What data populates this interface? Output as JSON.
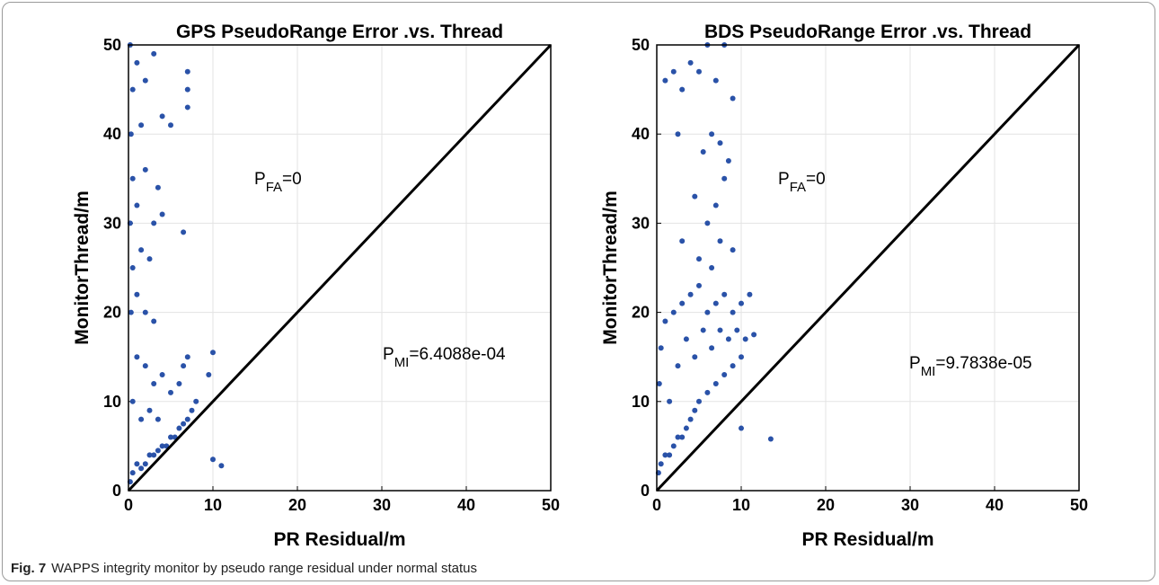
{
  "caption": {
    "label": "Fig. 7",
    "text": "WAPPS integrity monitor by pseudo range residual under normal status"
  },
  "chart_data": [
    {
      "type": "scatter",
      "title": "GPS PseudoRange Error .vs. Thread",
      "xlabel": "PR Residual/m",
      "ylabel": "MonitorThread/m",
      "xlim": [
        0,
        50
      ],
      "ylim": [
        0,
        50
      ],
      "xticks": [
        0,
        10,
        20,
        30,
        40,
        50
      ],
      "yticks": [
        0,
        10,
        20,
        30,
        40,
        50
      ],
      "grid": true,
      "annotations": [
        {
          "text": "P",
          "sub": "FA",
          "tail": "=0"
        },
        {
          "text": "P",
          "sub": "MI",
          "tail": "=6.4088e-04"
        }
      ],
      "series": [
        {
          "color": "#2a52a8",
          "x": [
            0.2,
            0.5,
            1,
            1.5,
            2,
            2.5,
            3,
            3.5,
            4,
            4.5,
            5,
            5.5,
            6,
            6.5,
            7,
            7.5,
            8,
            10,
            11,
            10,
            9.5,
            7,
            6.5,
            6,
            5,
            4,
            3,
            2,
            1,
            0.5,
            1.5,
            2.5,
            3.5,
            0.3,
            1,
            2,
            3,
            0.5,
            1.5,
            2.5,
            0.2,
            1,
            3,
            4,
            6.5,
            0.5,
            2,
            3.5,
            0.3,
            1.5,
            4,
            0.5,
            2,
            7,
            7,
            1,
            3,
            0.2,
            5,
            7
          ],
          "values": [
            1,
            2,
            3,
            2.5,
            3,
            4,
            4,
            4.5,
            5,
            5,
            6,
            6,
            7,
            7.5,
            8,
            9,
            10,
            3.5,
            2.8,
            15.5,
            13,
            15,
            14,
            12,
            11,
            13,
            12,
            14,
            15,
            10,
            8,
            9,
            8,
            20,
            22,
            20,
            19,
            25,
            27,
            26,
            30,
            32,
            30,
            31,
            29,
            35,
            36,
            34,
            40,
            41,
            42,
            45,
            46,
            47,
            45,
            48,
            49,
            50,
            41,
            43
          ]
        },
        {
          "type": "line",
          "color": "#000000",
          "x": [
            0,
            50
          ],
          "values": [
            0,
            50
          ]
        }
      ]
    },
    {
      "type": "scatter",
      "title": "BDS PseudoRange Error .vs. Thread",
      "xlabel": "PR Residual/m",
      "ylabel": "MonitorThread/m",
      "xlim": [
        0,
        50
      ],
      "ylim": [
        0,
        50
      ],
      "xticks": [
        0,
        10,
        20,
        30,
        40,
        50
      ],
      "yticks": [
        0,
        10,
        20,
        30,
        40,
        50
      ],
      "grid": true,
      "annotations": [
        {
          "text": "P",
          "sub": "FA",
          "tail": "=0"
        },
        {
          "text": "P",
          "sub": "MI",
          "tail": "=9.7838e-05"
        }
      ],
      "series": [
        {
          "color": "#2a52a8",
          "x": [
            0.2,
            0.5,
            1,
            1.5,
            2,
            2.5,
            3,
            3.5,
            4,
            4.5,
            5,
            6,
            7,
            8,
            9,
            10,
            10.5,
            11,
            10,
            9,
            8,
            7,
            6,
            5,
            4,
            3,
            2,
            1,
            0.5,
            0.3,
            1.5,
            2.5,
            3.5,
            4.5,
            5.5,
            6.5,
            7.5,
            8.5,
            9.5,
            11.5,
            13.5,
            10,
            2,
            3,
            4,
            5,
            6,
            7,
            8,
            9,
            5.5,
            6.5,
            7.5,
            8.5,
            4.5,
            6,
            7,
            8,
            3,
            5,
            6.5,
            7.5,
            9,
            1,
            2.5
          ],
          "values": [
            2,
            3,
            4,
            4,
            5,
            6,
            6,
            7,
            8,
            9,
            10,
            11,
            12,
            13,
            14,
            15,
            17,
            22,
            21,
            20,
            22,
            21,
            20,
            23,
            22,
            21,
            20,
            19,
            16,
            12,
            10,
            14,
            17,
            15,
            18,
            16,
            18,
            17,
            18,
            17.5,
            5.8,
            7,
            47,
            45,
            48,
            47,
            50,
            46,
            50,
            44,
            38,
            40,
            39,
            37,
            33,
            30,
            32,
            35,
            28,
            26,
            25,
            28,
            27,
            46,
            40
          ]
        },
        {
          "type": "line",
          "color": "#000000",
          "x": [
            0,
            50
          ],
          "values": [
            0,
            50
          ]
        }
      ]
    }
  ]
}
